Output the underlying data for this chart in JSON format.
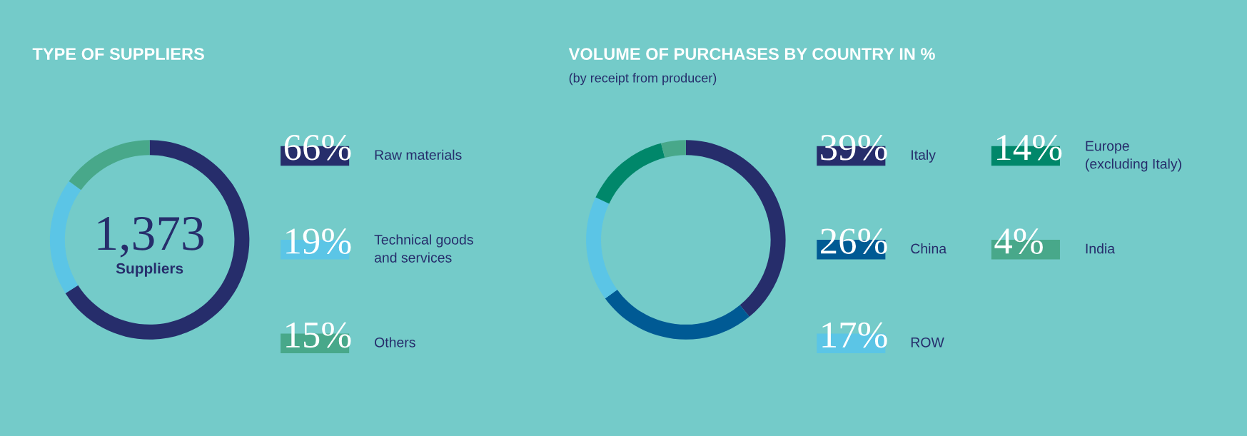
{
  "chart_data": [
    {
      "type": "donut",
      "title": "TYPE OF SUPPLIERS",
      "categories": [
        "Raw materials",
        "Technical goods\nand services",
        "Others"
      ],
      "values": [
        66,
        19,
        15
      ],
      "colors": [
        "#262d6b",
        "#5bc5e6",
        "#48a88a"
      ],
      "value_labels": [
        "66%",
        "19%",
        "15%"
      ],
      "annotations": [
        "1,373",
        "Suppliers"
      ],
      "legend": "right"
    },
    {
      "type": "donut",
      "title": "VOLUME OF PURCHASES BY COUNTRY IN %",
      "subtitle": "(by receipt from producer)",
      "categories": [
        "Italy",
        "China",
        "ROW",
        "Europe\n(excluding Italy)",
        "India"
      ],
      "values": [
        39,
        26,
        17,
        14,
        4
      ],
      "colors": [
        "#262d6b",
        "#005a94",
        "#5bc5e6",
        "#00876a",
        "#48a88a"
      ],
      "value_labels": [
        "39%",
        "26%",
        "17%",
        "14%",
        "4%"
      ],
      "legend": "right"
    }
  ]
}
